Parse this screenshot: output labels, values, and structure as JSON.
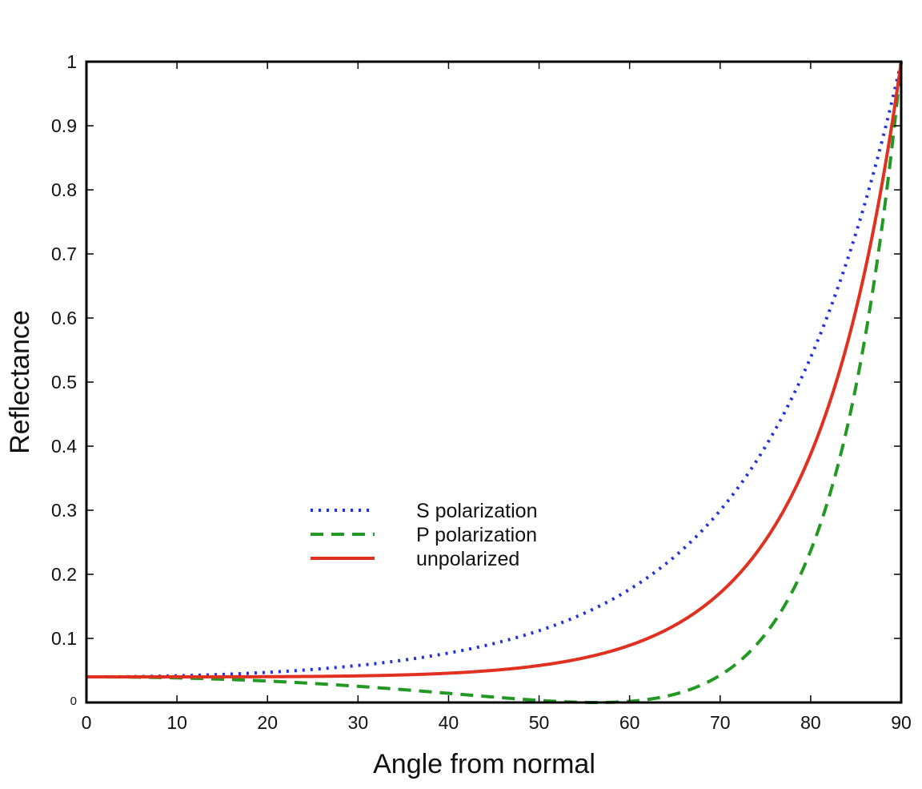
{
  "chart_data": {
    "type": "line",
    "title": "",
    "xlabel": "Angle from normal",
    "ylabel": "Reflectance",
    "xlim": [
      0,
      90
    ],
    "ylim": [
      0,
      1
    ],
    "xticks": [
      0,
      10,
      20,
      30,
      40,
      50,
      60,
      70,
      80,
      90
    ],
    "yticks": [
      0,
      0.1,
      0.2,
      0.3,
      0.4,
      0.5,
      0.6,
      0.7,
      0.8,
      0.9,
      1
    ],
    "ytick_labels": [
      "0",
      "0.1",
      "0.2",
      "0.3",
      "0.4",
      "0.5",
      "0.6",
      "0.7",
      "0.8",
      "0.9",
      "1"
    ],
    "grid": false,
    "legend_position": "center-left",
    "refractive_index": 1.5,
    "series": [
      {
        "name": "S polarization",
        "key": "s",
        "style": "dotted",
        "color": "#2233dd"
      },
      {
        "name": "P polarization",
        "key": "p",
        "style": "dashed",
        "color": "#229922"
      },
      {
        "name": "unpolarized",
        "key": "u",
        "style": "solid",
        "color": "#e03020"
      }
    ],
    "x": [
      0,
      10,
      20,
      30,
      40,
      50,
      56.3,
      60,
      70,
      80,
      85,
      90
    ],
    "series_values": {
      "s": [
        0.04,
        0.042,
        0.047,
        0.058,
        0.079,
        0.118,
        0.148,
        0.177,
        0.287,
        0.512,
        0.702,
        1.0
      ],
      "p": [
        0.04,
        0.038,
        0.033,
        0.025,
        0.014,
        0.003,
        0.0,
        0.002,
        0.039,
        0.238,
        0.528,
        1.0
      ],
      "u": [
        0.04,
        0.04,
        0.04,
        0.042,
        0.046,
        0.06,
        0.074,
        0.089,
        0.163,
        0.375,
        0.615,
        1.0
      ]
    }
  }
}
